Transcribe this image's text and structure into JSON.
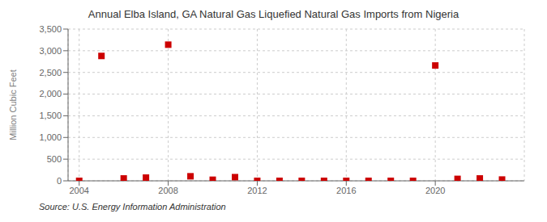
{
  "chart_data": {
    "type": "scatter",
    "title": "Annual Elba Island, GA Natural Gas Liquefied Natural Gas Imports from Nigeria",
    "ylabel": "Million Cubic Feet",
    "annotations": [
      "Source: U.S. Energy Information Administration"
    ],
    "x": [
      2004,
      2005,
      2006,
      2007,
      2008,
      2009,
      2010,
      2011,
      2012,
      2013,
      2014,
      2015,
      2016,
      2017,
      2018,
      2019,
      2020,
      2021,
      2022,
      2023
    ],
    "values": [
      0,
      2880,
      55,
      75,
      3140,
      105,
      25,
      85,
      0,
      0,
      0,
      0,
      0,
      0,
      0,
      0,
      2660,
      45,
      55,
      30
    ],
    "color": "#cc0000",
    "marker": "square",
    "xlim": [
      2003.5,
      2024.0
    ],
    "xticks": [
      2004,
      2008,
      2012,
      2016,
      2020
    ],
    "ylim": [
      0,
      3500
    ],
    "yticks": [
      0,
      500,
      {
        "value": 1000,
        "label": "1,000"
      },
      {
        "value": 1500,
        "label": "1,500"
      },
      {
        "value": 2000,
        "label": "2,000"
      },
      {
        "value": 2500,
        "label": "2,500"
      },
      {
        "value": 3000,
        "label": "3,000"
      },
      {
        "value": 3500,
        "label": "3,500"
      }
    ],
    "grid": true
  }
}
